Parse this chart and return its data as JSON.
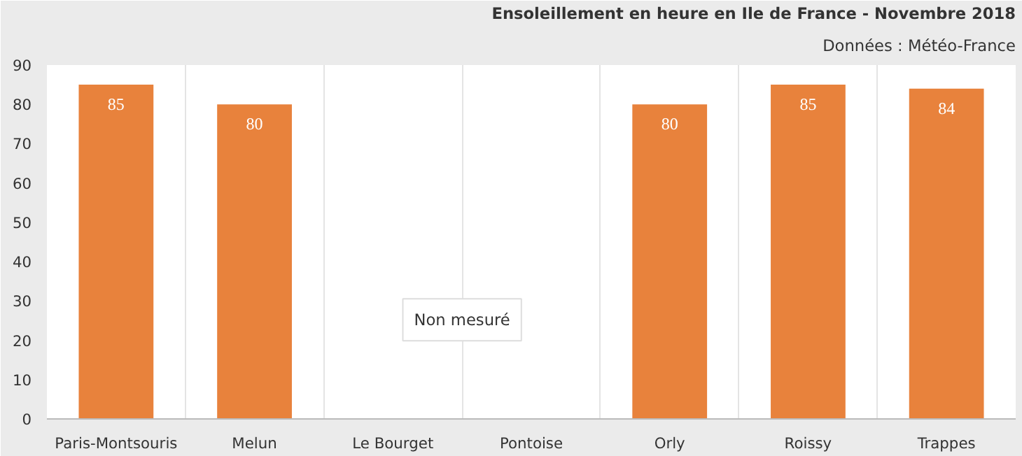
{
  "chart_data": {
    "type": "bar",
    "title": "Ensoleillement en heure en Ile de France - Novembre 2018",
    "subtitle": "Données : Météo-France",
    "categories": [
      "Paris-Montsouris",
      "Melun",
      "Le Bourget",
      "Pontoise",
      "Orly",
      "Roissy",
      "Trappes"
    ],
    "values": [
      85,
      80,
      null,
      null,
      80,
      85,
      84
    ],
    "color": "#e8823c",
    "ylim": [
      0,
      90
    ],
    "yticks": [
      0,
      10,
      20,
      30,
      40,
      50,
      60,
      70,
      80,
      90
    ],
    "grid": "x",
    "data_labels": true,
    "annotations": [
      "Non mesuré"
    ]
  }
}
